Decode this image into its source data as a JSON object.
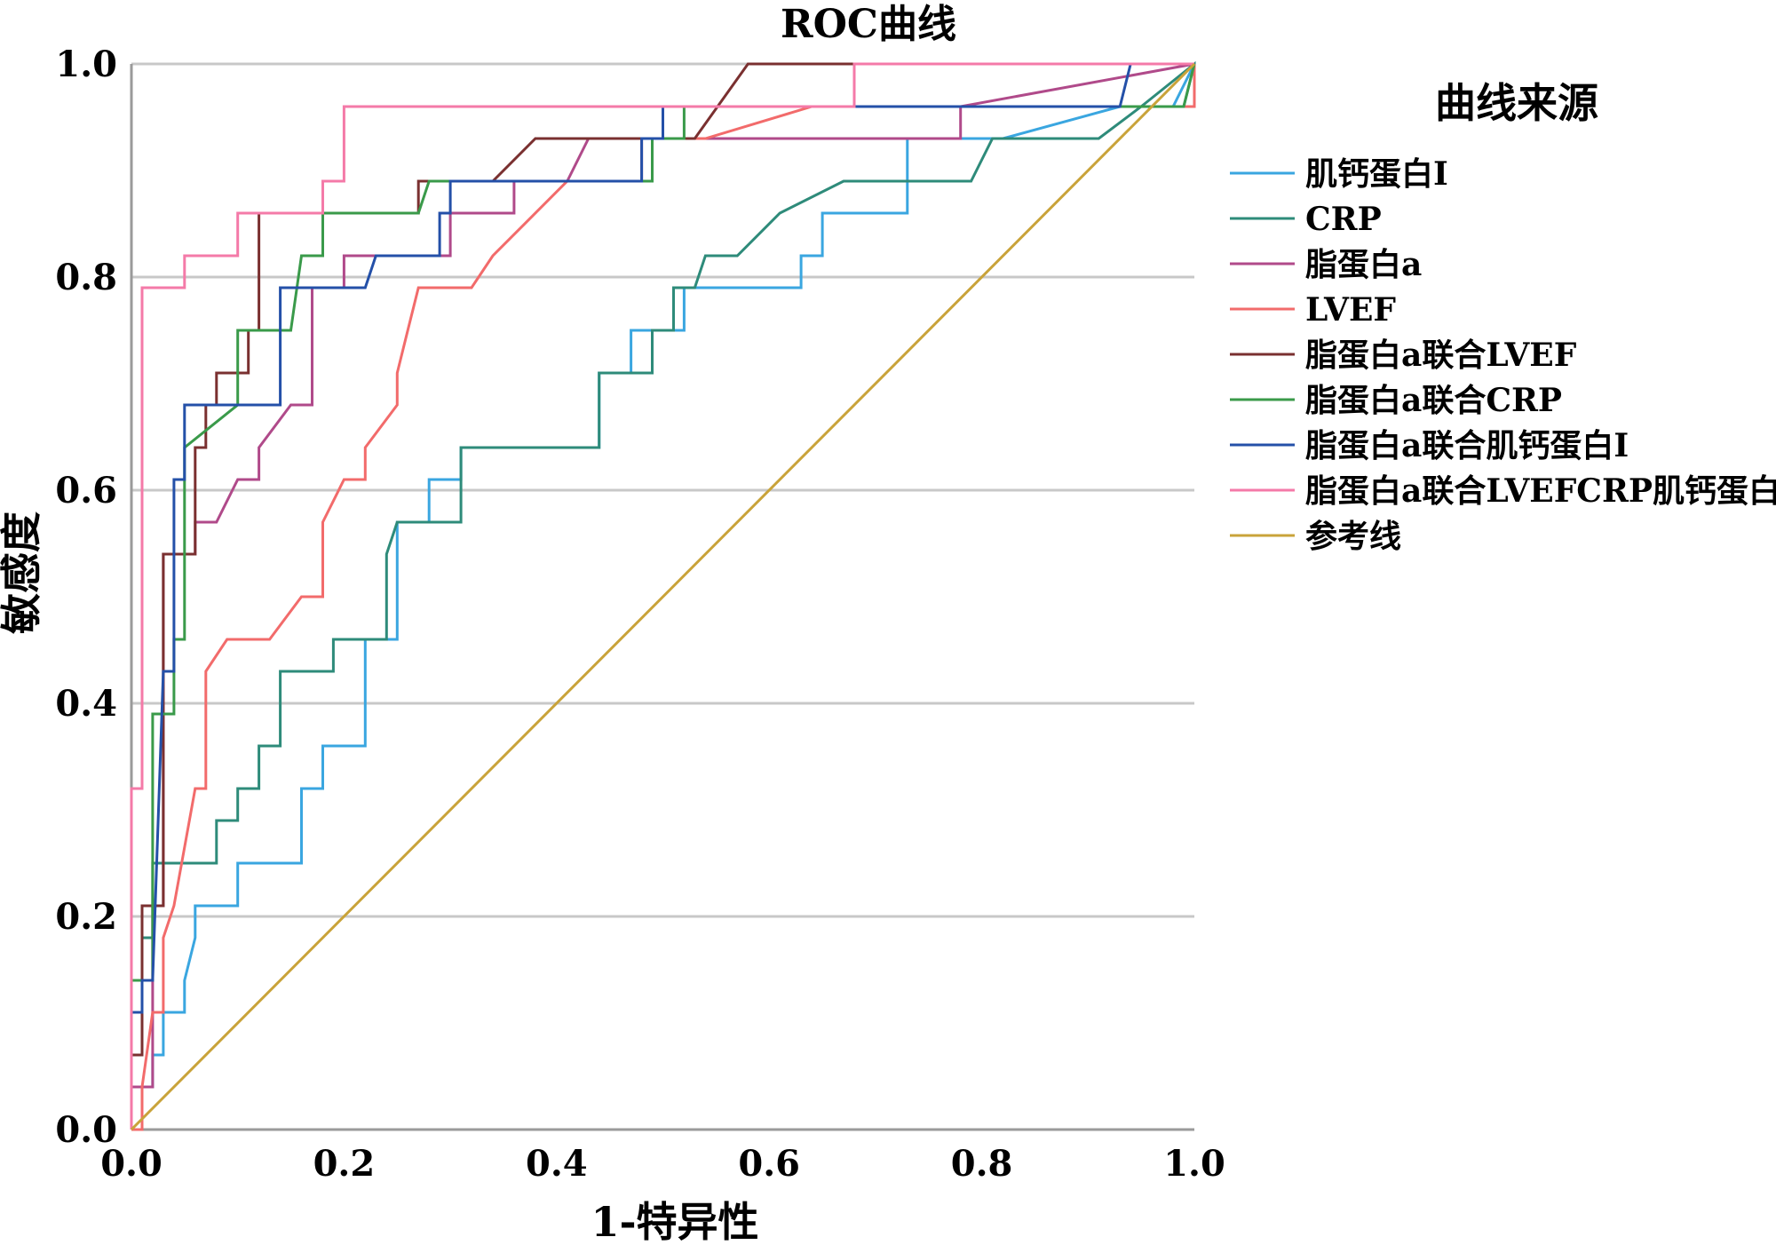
{
  "chart_data": {
    "type": "line",
    "title": "ROC曲线",
    "xlabel": "1-特异性",
    "ylabel": "敏感度",
    "xlim": [
      0,
      1
    ],
    "ylim": [
      0,
      1
    ],
    "x_ticks": [
      "0.0",
      "0.2",
      "0.4",
      "0.6",
      "0.8",
      "1.0"
    ],
    "y_ticks": [
      "0.0",
      "0.2",
      "0.4",
      "0.6",
      "0.8",
      "1.0"
    ],
    "grid": "horizontal",
    "legend": {
      "title": "曲线来源",
      "position": "right"
    },
    "series": [
      {
        "name": "肌钙蛋白I",
        "color": "#3aa6e0",
        "points": [
          [
            0,
            0
          ],
          [
            0.01,
            0
          ],
          [
            0.01,
            0.04
          ],
          [
            0.02,
            0.04
          ],
          [
            0.02,
            0.07
          ],
          [
            0.03,
            0.07
          ],
          [
            0.03,
            0.11
          ],
          [
            0.05,
            0.11
          ],
          [
            0.05,
            0.14
          ],
          [
            0.06,
            0.18
          ],
          [
            0.06,
            0.21
          ],
          [
            0.1,
            0.21
          ],
          [
            0.1,
            0.25
          ],
          [
            0.16,
            0.25
          ],
          [
            0.16,
            0.32
          ],
          [
            0.18,
            0.32
          ],
          [
            0.18,
            0.36
          ],
          [
            0.22,
            0.36
          ],
          [
            0.22,
            0.46
          ],
          [
            0.25,
            0.46
          ],
          [
            0.25,
            0.57
          ],
          [
            0.28,
            0.57
          ],
          [
            0.28,
            0.61
          ],
          [
            0.31,
            0.61
          ],
          [
            0.31,
            0.64
          ],
          [
            0.44,
            0.64
          ],
          [
            0.44,
            0.71
          ],
          [
            0.47,
            0.71
          ],
          [
            0.47,
            0.75
          ],
          [
            0.52,
            0.75
          ],
          [
            0.52,
            0.79
          ],
          [
            0.63,
            0.79
          ],
          [
            0.63,
            0.82
          ],
          [
            0.65,
            0.82
          ],
          [
            0.65,
            0.86
          ],
          [
            0.73,
            0.86
          ],
          [
            0.73,
            0.93
          ],
          [
            0.82,
            0.93
          ],
          [
            0.93,
            0.96
          ],
          [
            0.98,
            0.96
          ],
          [
            1,
            1
          ]
        ]
      },
      {
        "name": "CRP",
        "color": "#2e8b7a",
        "points": [
          [
            0,
            0
          ],
          [
            0,
            0.14
          ],
          [
            0.01,
            0.14
          ],
          [
            0.01,
            0.18
          ],
          [
            0.02,
            0.18
          ],
          [
            0.02,
            0.25
          ],
          [
            0.08,
            0.25
          ],
          [
            0.08,
            0.29
          ],
          [
            0.1,
            0.29
          ],
          [
            0.1,
            0.32
          ],
          [
            0.12,
            0.32
          ],
          [
            0.12,
            0.36
          ],
          [
            0.14,
            0.36
          ],
          [
            0.14,
            0.43
          ],
          [
            0.19,
            0.43
          ],
          [
            0.19,
            0.46
          ],
          [
            0.24,
            0.46
          ],
          [
            0.24,
            0.54
          ],
          [
            0.25,
            0.57
          ],
          [
            0.31,
            0.57
          ],
          [
            0.31,
            0.64
          ],
          [
            0.44,
            0.64
          ],
          [
            0.44,
            0.71
          ],
          [
            0.49,
            0.71
          ],
          [
            0.49,
            0.75
          ],
          [
            0.51,
            0.75
          ],
          [
            0.51,
            0.79
          ],
          [
            0.53,
            0.79
          ],
          [
            0.54,
            0.82
          ],
          [
            0.57,
            0.82
          ],
          [
            0.61,
            0.86
          ],
          [
            0.67,
            0.89
          ],
          [
            0.79,
            0.89
          ],
          [
            0.81,
            0.93
          ],
          [
            0.91,
            0.93
          ],
          [
            0.95,
            0.96
          ],
          [
            1,
            1
          ],
          [
            1,
            0.96
          ],
          [
            0.99,
            0.96
          ],
          [
            1,
            1
          ]
        ]
      },
      {
        "name": "脂蛋白a",
        "color": "#b04a8a",
        "points": [
          [
            0,
            0
          ],
          [
            0,
            0.04
          ],
          [
            0.02,
            0.04
          ],
          [
            0.02,
            0.21
          ],
          [
            0.03,
            0.21
          ],
          [
            0.03,
            0.54
          ],
          [
            0.06,
            0.54
          ],
          [
            0.06,
            0.57
          ],
          [
            0.08,
            0.57
          ],
          [
            0.1,
            0.61
          ],
          [
            0.12,
            0.61
          ],
          [
            0.12,
            0.64
          ],
          [
            0.15,
            0.68
          ],
          [
            0.17,
            0.68
          ],
          [
            0.17,
            0.79
          ],
          [
            0.2,
            0.79
          ],
          [
            0.2,
            0.82
          ],
          [
            0.3,
            0.82
          ],
          [
            0.3,
            0.86
          ],
          [
            0.36,
            0.86
          ],
          [
            0.36,
            0.89
          ],
          [
            0.41,
            0.89
          ],
          [
            0.43,
            0.93
          ],
          [
            0.78,
            0.93
          ],
          [
            0.78,
            0.96
          ],
          [
            1,
            1
          ]
        ]
      },
      {
        "name": "LVEF",
        "color": "#f26b6b",
        "points": [
          [
            0,
            0
          ],
          [
            0.01,
            0
          ],
          [
            0.01,
            0.04
          ],
          [
            0.02,
            0.11
          ],
          [
            0.03,
            0.11
          ],
          [
            0.03,
            0.18
          ],
          [
            0.04,
            0.21
          ],
          [
            0.06,
            0.32
          ],
          [
            0.07,
            0.32
          ],
          [
            0.07,
            0.43
          ],
          [
            0.09,
            0.46
          ],
          [
            0.13,
            0.46
          ],
          [
            0.16,
            0.5
          ],
          [
            0.18,
            0.5
          ],
          [
            0.18,
            0.57
          ],
          [
            0.2,
            0.61
          ],
          [
            0.22,
            0.61
          ],
          [
            0.22,
            0.64
          ],
          [
            0.25,
            0.68
          ],
          [
            0.25,
            0.71
          ],
          [
            0.26,
            0.75
          ],
          [
            0.27,
            0.79
          ],
          [
            0.32,
            0.79
          ],
          [
            0.34,
            0.82
          ],
          [
            0.41,
            0.89
          ],
          [
            0.48,
            0.89
          ],
          [
            0.48,
            0.93
          ],
          [
            0.52,
            0.93
          ],
          [
            0.54,
            0.93
          ],
          [
            0.64,
            0.96
          ],
          [
            1,
            0.96
          ],
          [
            1,
            1
          ]
        ]
      },
      {
        "name": "脂蛋白a联合LVEF",
        "color": "#7a3030",
        "points": [
          [
            0,
            0
          ],
          [
            0,
            0.07
          ],
          [
            0.01,
            0.07
          ],
          [
            0.01,
            0.21
          ],
          [
            0.03,
            0.21
          ],
          [
            0.03,
            0.54
          ],
          [
            0.06,
            0.54
          ],
          [
            0.06,
            0.64
          ],
          [
            0.07,
            0.64
          ],
          [
            0.07,
            0.68
          ],
          [
            0.08,
            0.68
          ],
          [
            0.08,
            0.71
          ],
          [
            0.11,
            0.71
          ],
          [
            0.11,
            0.75
          ],
          [
            0.12,
            0.75
          ],
          [
            0.12,
            0.86
          ],
          [
            0.27,
            0.86
          ],
          [
            0.27,
            0.89
          ],
          [
            0.31,
            0.89
          ],
          [
            0.34,
            0.89
          ],
          [
            0.38,
            0.93
          ],
          [
            0.53,
            0.93
          ],
          [
            0.53,
            0.93
          ],
          [
            0.58,
            1
          ],
          [
            1,
            1
          ]
        ]
      },
      {
        "name": "脂蛋白a联合CRP",
        "color": "#3a9a4a",
        "points": [
          [
            0,
            0
          ],
          [
            0,
            0.14
          ],
          [
            0.02,
            0.14
          ],
          [
            0.02,
            0.39
          ],
          [
            0.04,
            0.39
          ],
          [
            0.04,
            0.46
          ],
          [
            0.05,
            0.46
          ],
          [
            0.05,
            0.64
          ],
          [
            0.1,
            0.68
          ],
          [
            0.1,
            0.75
          ],
          [
            0.15,
            0.75
          ],
          [
            0.16,
            0.82
          ],
          [
            0.18,
            0.82
          ],
          [
            0.18,
            0.86
          ],
          [
            0.27,
            0.86
          ],
          [
            0.28,
            0.89
          ],
          [
            0.49,
            0.89
          ],
          [
            0.49,
            0.93
          ],
          [
            0.52,
            0.93
          ],
          [
            0.52,
            0.96
          ],
          [
            0.95,
            0.96
          ],
          [
            0.99,
            0.96
          ],
          [
            1,
            1
          ]
        ]
      },
      {
        "name": "脂蛋白a联合肌钙蛋白I",
        "color": "#2450a8",
        "points": [
          [
            0,
            0
          ],
          [
            0,
            0.11
          ],
          [
            0.01,
            0.11
          ],
          [
            0.01,
            0.14
          ],
          [
            0.02,
            0.14
          ],
          [
            0.03,
            0.43
          ],
          [
            0.04,
            0.43
          ],
          [
            0.04,
            0.61
          ],
          [
            0.05,
            0.61
          ],
          [
            0.05,
            0.68
          ],
          [
            0.14,
            0.68
          ],
          [
            0.14,
            0.79
          ],
          [
            0.22,
            0.79
          ],
          [
            0.23,
            0.82
          ],
          [
            0.29,
            0.82
          ],
          [
            0.29,
            0.86
          ],
          [
            0.3,
            0.86
          ],
          [
            0.3,
            0.89
          ],
          [
            0.48,
            0.89
          ],
          [
            0.48,
            0.93
          ],
          [
            0.5,
            0.93
          ],
          [
            0.5,
            0.96
          ],
          [
            0.66,
            0.96
          ],
          [
            0.93,
            0.96
          ],
          [
            0.94,
            1
          ],
          [
            1,
            1
          ]
        ]
      },
      {
        "name": "脂蛋白a联合LVEFCRP肌钙蛋白I",
        "color": "#f47aa8",
        "points": [
          [
            0,
            0
          ],
          [
            0,
            0.32
          ],
          [
            0.01,
            0.32
          ],
          [
            0.01,
            0.79
          ],
          [
            0.05,
            0.79
          ],
          [
            0.05,
            0.82
          ],
          [
            0.1,
            0.82
          ],
          [
            0.1,
            0.86
          ],
          [
            0.18,
            0.86
          ],
          [
            0.18,
            0.89
          ],
          [
            0.2,
            0.89
          ],
          [
            0.2,
            0.96
          ],
          [
            0.68,
            0.96
          ],
          [
            0.68,
            1
          ],
          [
            1,
            1
          ]
        ]
      },
      {
        "name": "参考线",
        "color": "#c9a33a",
        "points": [
          [
            0,
            0
          ],
          [
            1,
            1
          ]
        ]
      }
    ]
  }
}
